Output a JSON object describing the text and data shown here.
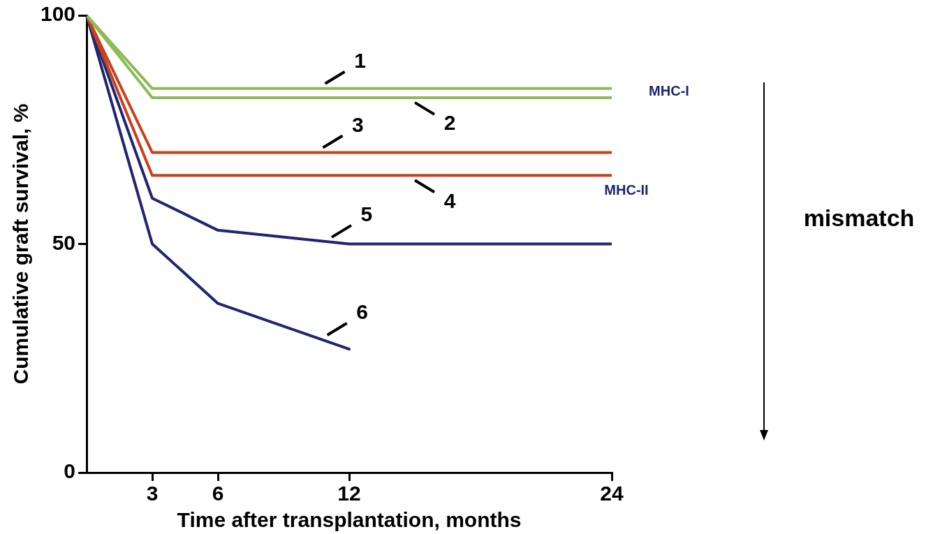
{
  "chart_data": {
    "type": "line",
    "xlabel": "Time after transplantation, months",
    "ylabel": "Cumulative graft survival, %",
    "xlim": [
      0,
      24
    ],
    "xticks": [
      3,
      6,
      12,
      24
    ],
    "ylim": [
      0,
      100
    ],
    "yticks": [
      0,
      50,
      100
    ],
    "grid": false,
    "legend": false,
    "marker": "none",
    "series": [
      {
        "color": "#8cbb55",
        "x": [
          0,
          3,
          24
        ],
        "values": [
          100,
          84,
          84
        ]
      },
      {
        "color": "#8cbb55",
        "x": [
          0,
          3,
          24
        ],
        "values": [
          100,
          82,
          82
        ]
      },
      {
        "color": "#c9401c",
        "x": [
          0,
          3,
          24
        ],
        "values": [
          100,
          70,
          70
        ]
      },
      {
        "color": "#c9401c",
        "x": [
          0,
          3,
          24
        ],
        "values": [
          100,
          65,
          65
        ]
      },
      {
        "color": "#1f2573",
        "x": [
          0,
          3,
          6,
          12,
          24
        ],
        "values": [
          100,
          60,
          53,
          50,
          50
        ]
      },
      {
        "color": "#1f2573",
        "x": [
          0,
          3,
          6,
          12
        ],
        "values": [
          100,
          50,
          37,
          27
        ]
      }
    ],
    "annotations": [
      {
        "text": "1",
        "x": 10.9,
        "y": 84
      },
      {
        "text": "2",
        "x": 15,
        "y": 82
      },
      {
        "text": "3",
        "x": 10.8,
        "y": 70
      },
      {
        "text": "4",
        "x": 15,
        "y": 65
      },
      {
        "text": "5",
        "x": 11.2,
        "y": 50.4
      },
      {
        "text": "6",
        "x": 11,
        "y": 29
      },
      "MHC-I",
      "MHC-II",
      "mismatch"
    ]
  }
}
